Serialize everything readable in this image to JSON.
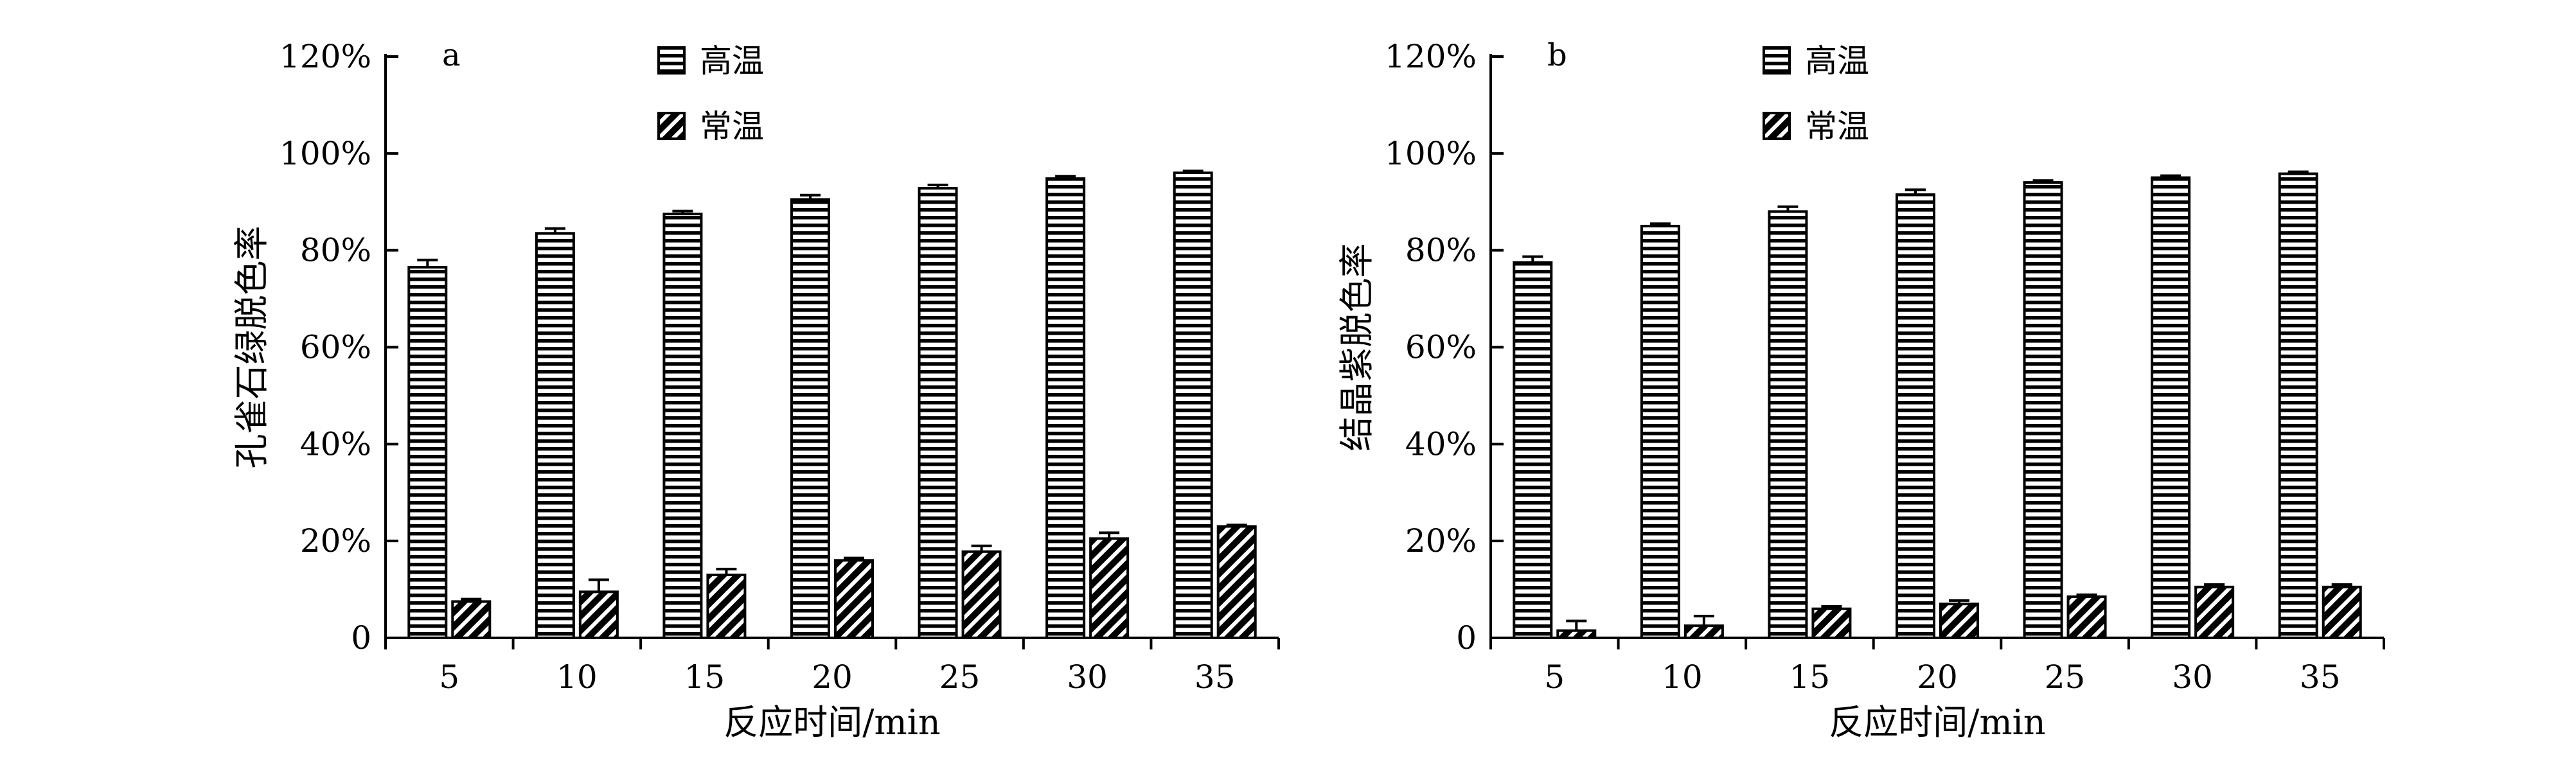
{
  "chart_data": [
    {
      "type": "bar",
      "panel_label": "a",
      "categories": [
        "5",
        "10",
        "15",
        "20",
        "25",
        "30",
        "35"
      ],
      "series": [
        {
          "name": "高温",
          "pattern": "horizontal-stripes",
          "values": [
            76.5,
            83.5,
            87.5,
            90.5,
            92.8,
            94.8,
            96.0
          ],
          "errors": [
            1.5,
            1.0,
            0.6,
            0.9,
            0.7,
            0.5,
            0.4
          ]
        },
        {
          "name": "常温",
          "pattern": "diagonal-stripes",
          "values": [
            7.5,
            9.5,
            13.0,
            16.0,
            17.8,
            20.5,
            23.0
          ],
          "errors": [
            0.5,
            2.5,
            1.2,
            0.5,
            1.2,
            1.2,
            0.3
          ]
        }
      ],
      "xlabel": "反应时间/min",
      "ylabel": "孔雀石绿脱色率",
      "ylim": [
        0,
        120
      ],
      "yticks": [
        "0",
        "20%",
        "40%",
        "60%",
        "80%",
        "100%",
        "120%"
      ],
      "grid": false,
      "legend": "top-center"
    },
    {
      "type": "bar",
      "panel_label": "b",
      "categories": [
        "5",
        "10",
        "15",
        "20",
        "25",
        "30",
        "35"
      ],
      "series": [
        {
          "name": "高温",
          "pattern": "horizontal-stripes",
          "values": [
            77.5,
            85.0,
            88.0,
            91.5,
            94.0,
            95.0,
            95.8
          ],
          "errors": [
            1.2,
            0.5,
            1.0,
            1.0,
            0.4,
            0.4,
            0.4
          ]
        },
        {
          "name": "常温",
          "pattern": "diagonal-stripes",
          "values": [
            1.5,
            2.5,
            6.0,
            7.0,
            8.5,
            10.5,
            10.5
          ],
          "errors": [
            2.0,
            2.0,
            0.5,
            0.7,
            0.4,
            0.5,
            0.5
          ]
        }
      ],
      "xlabel": "反应时间/min",
      "ylabel": "结晶紫脱色率",
      "ylim": [
        0,
        120
      ],
      "yticks": [
        "0",
        "20%",
        "40%",
        "60%",
        "80%",
        "100%",
        "120%"
      ],
      "grid": false,
      "legend": "top-center"
    }
  ]
}
